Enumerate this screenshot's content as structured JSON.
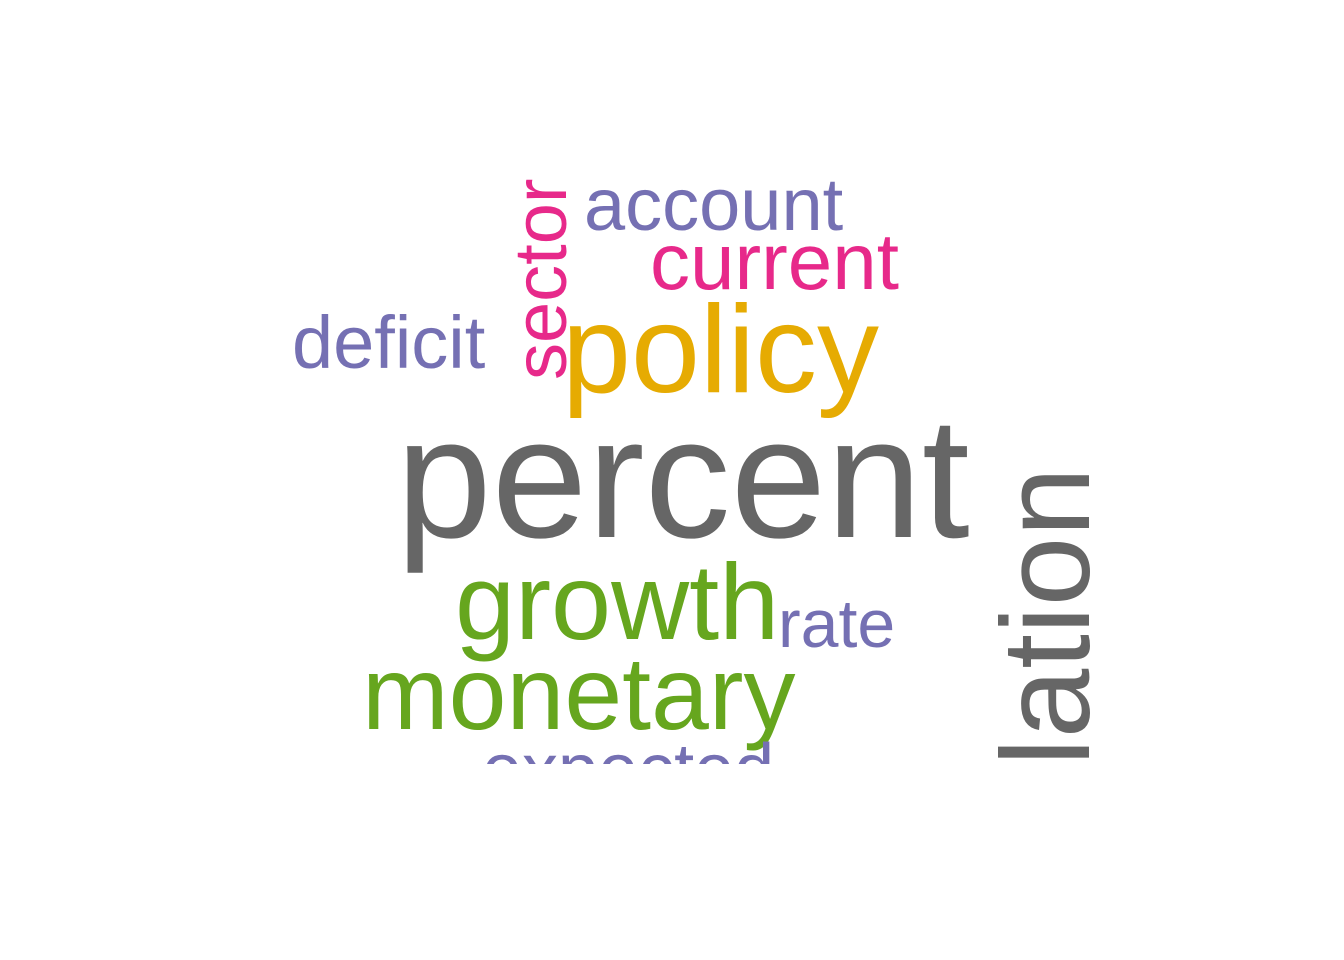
{
  "colors": {
    "gray": "#666666",
    "green": "#66a61e",
    "orange": "#e6ab02",
    "magenta": "#e7298a",
    "purple": "#7570b3",
    "background": "#ffffff"
  },
  "words": [
    {
      "text": "percent",
      "color": "#666666",
      "orientation": "horizontal"
    },
    {
      "text": "inflation",
      "color": "#666666",
      "orientation": "vertical",
      "clipped": true
    },
    {
      "text": "policy",
      "color": "#e6ab02",
      "orientation": "horizontal"
    },
    {
      "text": "growth",
      "color": "#66a61e",
      "orientation": "horizontal"
    },
    {
      "text": "monetary",
      "color": "#66a61e",
      "orientation": "horizontal"
    },
    {
      "text": "current",
      "color": "#e7298a",
      "orientation": "horizontal"
    },
    {
      "text": "sector",
      "color": "#e7298a",
      "orientation": "vertical",
      "clipped": true
    },
    {
      "text": "account",
      "color": "#7570b3",
      "orientation": "horizontal"
    },
    {
      "text": "deficit",
      "color": "#7570b3",
      "orientation": "horizontal"
    },
    {
      "text": "rate",
      "color": "#7570b3",
      "orientation": "horizontal"
    },
    {
      "text": "expected",
      "color": "#7570b3",
      "orientation": "horizontal",
      "clipped": true
    }
  ]
}
